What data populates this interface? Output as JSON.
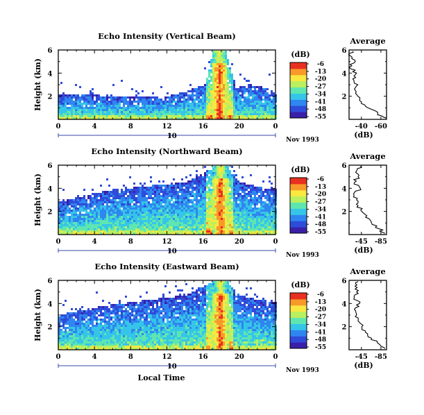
{
  "figure": {
    "date_label": "Nov 1993",
    "xlabel": "Local Time",
    "panel_ylabel": "Height (km)",
    "average_title": "Average",
    "average_xlabel": "(dB)",
    "colorbar_unit": "(dB)"
  },
  "chart_data": [
    {
      "type": "heatmap",
      "title": "Echo Intensity (Vertical Beam)",
      "xlabel": "",
      "ylabel": "Height (km)",
      "xlim": [
        0,
        24
      ],
      "x_ticks": [
        "0",
        "4",
        "8",
        "12",
        "16",
        "20",
        "0"
      ],
      "ylim": [
        0,
        6
      ],
      "y_ticks": [
        "2",
        "4",
        "6"
      ],
      "secondary_x_ticks": [
        "10"
      ],
      "colorbar": {
        "label": "(dB)",
        "ticks": [
          "-6",
          "-13",
          "-20",
          "-27",
          "-34",
          "-41",
          "-48",
          "-55"
        ],
        "range": [
          -55,
          -6
        ]
      },
      "cloud_tops_km": [
        [
          0.5,
          2.2
        ],
        [
          2,
          2.3
        ],
        [
          4,
          2.2
        ],
        [
          6,
          2.0
        ],
        [
          8,
          2.0
        ],
        [
          10,
          2.0
        ],
        [
          12,
          2.1
        ],
        [
          14,
          2.5
        ],
        [
          16.2,
          3.2
        ],
        [
          17,
          6.0
        ],
        [
          18.4,
          6.0
        ],
        [
          19.5,
          2.8
        ],
        [
          21,
          3.1
        ],
        [
          23,
          2.8
        ],
        [
          24,
          2.2
        ]
      ],
      "heavy_band_hours": [
        16.8,
        18.6
      ],
      "average_profile": {
        "xlim": [
          -30,
          -60
        ],
        "x_ticks": [
          "-40",
          "-60"
        ],
        "ylim": [
          0,
          6
        ],
        "y_ticks": [
          "2",
          "4",
          "6"
        ],
        "height_km": [
          0.1,
          0.5,
          1.0,
          1.5,
          2.0,
          2.5,
          3.0,
          3.5,
          4.0,
          4.5,
          5.0,
          5.5,
          5.9
        ],
        "db": [
          -60,
          -53,
          -45,
          -40,
          -37,
          -35,
          -37,
          -33,
          -36,
          -30,
          -35,
          -31,
          -33
        ]
      }
    },
    {
      "type": "heatmap",
      "title": "Echo Intensity (Northward Beam)",
      "xlabel": "",
      "ylabel": "Height (km)",
      "xlim": [
        0,
        24
      ],
      "x_ticks": [
        "0",
        "4",
        "8",
        "12",
        "16",
        "20",
        "0"
      ],
      "ylim": [
        0,
        6
      ],
      "y_ticks": [
        "2",
        "4",
        "6"
      ],
      "secondary_x_ticks": [
        "10"
      ],
      "colorbar": {
        "label": "(dB)",
        "ticks": [
          "-6",
          "-13",
          "-20",
          "-27",
          "-34",
          "-41",
          "-48",
          "-55"
        ],
        "range": [
          -55,
          -6
        ]
      },
      "cloud_tops_km": [
        [
          0.5,
          3.0
        ],
        [
          3,
          3.5
        ],
        [
          6,
          4.0
        ],
        [
          9,
          4.2
        ],
        [
          12,
          4.5
        ],
        [
          14,
          4.6
        ],
        [
          16.5,
          5.6
        ],
        [
          17.5,
          6.0
        ],
        [
          18.5,
          6.0
        ],
        [
          20,
          4.6
        ],
        [
          22,
          4.2
        ],
        [
          24,
          4.0
        ]
      ],
      "heavy_band_hours": [
        16.9,
        18.7
      ],
      "average_profile": {
        "xlim": [
          -40,
          -90
        ],
        "x_ticks": [
          "-45",
          "-85"
        ],
        "ylim": [
          0,
          6
        ],
        "y_ticks": [
          "2",
          "4",
          "6"
        ],
        "height_km": [
          0.1,
          0.5,
          1.0,
          1.5,
          2.0,
          2.5,
          3.0,
          3.5,
          4.0,
          4.5,
          5.0,
          5.5,
          5.9
        ],
        "db": [
          -88,
          -80,
          -70,
          -62,
          -57,
          -52,
          -50,
          -46,
          -55,
          -47,
          -52,
          -50,
          -55
        ]
      }
    },
    {
      "type": "heatmap",
      "title": "Echo Intensity (Eastward Beam)",
      "xlabel": "Local Time",
      "ylabel": "Height (km)",
      "xlim": [
        0,
        24
      ],
      "x_ticks": [
        "0",
        "4",
        "8",
        "12",
        "16",
        "20",
        "0"
      ],
      "ylim": [
        0,
        6
      ],
      "y_ticks": [
        "2",
        "4",
        "6"
      ],
      "secondary_x_ticks": [
        "10"
      ],
      "colorbar": {
        "label": "(dB)",
        "ticks": [
          "-6",
          "-13",
          "-20",
          "-27",
          "-34",
          "-41",
          "-48",
          "-55"
        ],
        "range": [
          -55,
          -6
        ]
      },
      "cloud_tops_km": [
        [
          0.5,
          3.2
        ],
        [
          3,
          3.6
        ],
        [
          6,
          4.0
        ],
        [
          9,
          4.3
        ],
        [
          12,
          4.6
        ],
        [
          14,
          4.8
        ],
        [
          16.5,
          5.8
        ],
        [
          17.5,
          6.0
        ],
        [
          18.5,
          6.0
        ],
        [
          20,
          4.8
        ],
        [
          22,
          4.4
        ],
        [
          24,
          4.2
        ]
      ],
      "heavy_band_hours": [
        16.9,
        18.7
      ],
      "average_profile": {
        "xlim": [
          -40,
          -90
        ],
        "x_ticks": [
          "-45",
          "-85"
        ],
        "ylim": [
          0,
          6
        ],
        "y_ticks": [
          "2",
          "4",
          "6"
        ],
        "height_km": [
          0.1,
          0.5,
          1.0,
          1.5,
          2.0,
          2.5,
          3.0,
          3.5,
          4.0,
          4.5,
          5.0,
          5.5,
          5.9
        ],
        "db": [
          -88,
          -80,
          -70,
          -62,
          -57,
          -52,
          -50,
          -47,
          -54,
          -47,
          -50,
          -48,
          -52
        ]
      }
    }
  ],
  "palette": [
    "#3a1fa8",
    "#2f4bd9",
    "#2f86f0",
    "#35c5e8",
    "#5fe6b0",
    "#b8f060",
    "#f8e840",
    "#f89a2a",
    "#e83020"
  ]
}
